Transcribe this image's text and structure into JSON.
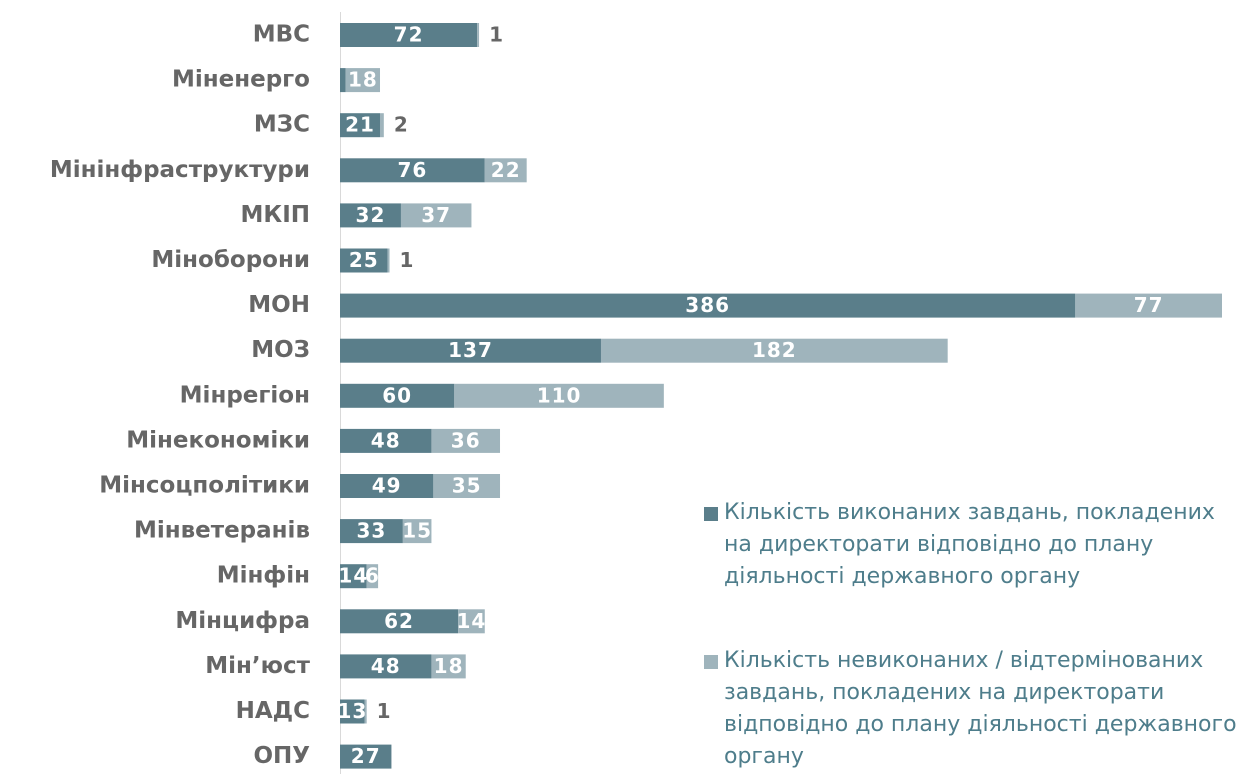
{
  "chart_data": {
    "type": "barh-stacked",
    "categories": [
      "МВС",
      "Міненерго",
      "МЗС",
      "Мінінфраструктури",
      "МКІП",
      "Міноборони",
      "МОН",
      "МОЗ",
      "Мінрегіон",
      "Мінекономіки",
      "Мінсоцполітики",
      "Мінветеранів",
      "Мінфін",
      "Мінцифра",
      "Мін’юст",
      "НАДС",
      "ОПУ"
    ],
    "series": [
      {
        "name": "Кількість виконаних завдань, покладених на директорати відповідно до плану діяльності державного органу",
        "color": "#5a7e8a",
        "values": [
          72,
          3,
          21,
          76,
          32,
          25,
          386,
          137,
          60,
          48,
          49,
          33,
          14,
          62,
          48,
          13,
          27
        ]
      },
      {
        "name": "Кількість невиконаних / відтермінованих завдань, покладених на директорати відповідно до плану діяльності державного органу",
        "color": "#9fb4bc",
        "values": [
          1,
          18,
          2,
          22,
          37,
          1,
          77,
          182,
          110,
          36,
          35,
          15,
          6,
          14,
          18,
          1,
          null
        ]
      }
    ],
    "legend": "lower right"
  }
}
